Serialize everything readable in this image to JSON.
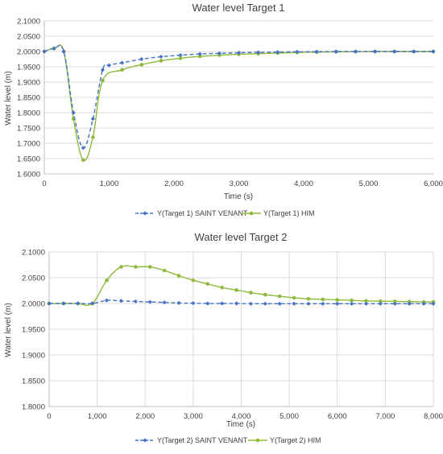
{
  "chart_data": [
    {
      "type": "line",
      "title": "Water level Target 1",
      "xlabel": "Time (s)",
      "ylabel": "Water level (m)",
      "xlim": [
        0,
        6000
      ],
      "ylim": [
        1.6,
        2.1
      ],
      "x_ticks": [
        "0",
        "1,000",
        "2,000",
        "3,000",
        "4,000",
        "5,000",
        "6,000"
      ],
      "y_ticks": [
        "1.6000",
        "1.6500",
        "1.7000",
        "1.7500",
        "1.8000",
        "1.8500",
        "1.9000",
        "1.9500",
        "2.0000",
        "2.0500",
        "2.1000"
      ],
      "grid": "horizontal",
      "legend": "bottom",
      "series": [
        {
          "name": "Y(Target 1) SAINT VENANT",
          "color": "#4472c4",
          "style": "dashed",
          "marker": "diamond",
          "points": [
            [
              0,
              2.0
            ],
            [
              150,
              2.01
            ],
            [
              300,
              2.0
            ],
            [
              450,
              1.8
            ],
            [
              600,
              1.685
            ],
            [
              750,
              1.78
            ],
            [
              900,
              1.94
            ],
            [
              1000,
              1.955
            ],
            [
              1200,
              1.963
            ],
            [
              1500,
              1.975
            ],
            [
              1800,
              1.983
            ],
            [
              2100,
              1.988
            ],
            [
              2400,
              1.992
            ],
            [
              2700,
              1.994
            ],
            [
              3000,
              1.996
            ],
            [
              3300,
              1.997
            ],
            [
              3600,
              1.998
            ],
            [
              3900,
              1.999
            ],
            [
              4200,
              1.9995
            ],
            [
              4500,
              2.0
            ],
            [
              4800,
              2.0
            ],
            [
              5100,
              2.0
            ],
            [
              5400,
              2.0
            ],
            [
              5700,
              2.0
            ],
            [
              6000,
              2.0
            ]
          ]
        },
        {
          "name": "Y(Target 1) HIM",
          "color": "#8fba3c",
          "style": "solid",
          "marker": "circle",
          "points": [
            [
              0,
              2.0
            ],
            [
              150,
              2.01
            ],
            [
              300,
              2.0
            ],
            [
              450,
              1.78
            ],
            [
              600,
              1.645
            ],
            [
              750,
              1.72
            ],
            [
              900,
              1.905
            ],
            [
              1200,
              1.94
            ],
            [
              1500,
              1.957
            ],
            [
              1800,
              1.97
            ],
            [
              2100,
              1.978
            ],
            [
              2400,
              1.984
            ],
            [
              2700,
              1.988
            ],
            [
              3000,
              1.991
            ],
            [
              3300,
              1.993
            ],
            [
              3600,
              1.995
            ],
            [
              3900,
              1.997
            ],
            [
              4200,
              1.998
            ],
            [
              4500,
              1.999
            ],
            [
              4800,
              1.9995
            ],
            [
              5100,
              2.0
            ],
            [
              5400,
              2.0
            ],
            [
              5700,
              2.0
            ],
            [
              6000,
              2.0
            ]
          ]
        }
      ]
    },
    {
      "type": "line",
      "title": "Water level Target 2",
      "xlabel": "Time (s)",
      "ylabel": "Water level (m)",
      "xlim": [
        0,
        8000
      ],
      "ylim": [
        1.8,
        2.1
      ],
      "x_ticks": [
        "0",
        "1,000",
        "2,000",
        "3,000",
        "4,000",
        "5,000",
        "6,000",
        "7,000",
        "8,000"
      ],
      "y_ticks": [
        "1.8000",
        "1.8500",
        "1.9000",
        "1.9500",
        "2.0000",
        "2.0500",
        "2.1000"
      ],
      "grid": "both",
      "legend": "bottom",
      "series": [
        {
          "name": "Y(Target 2) SAINT VENANT",
          "color": "#4472c4",
          "style": "dashed",
          "marker": "diamond",
          "points": [
            [
              0,
              2.0
            ],
            [
              300,
              2.0
            ],
            [
              600,
              2.0
            ],
            [
              900,
              2.0
            ],
            [
              1200,
              2.006
            ],
            [
              1500,
              2.005
            ],
            [
              1800,
              2.004
            ],
            [
              2100,
              2.003
            ],
            [
              2400,
              2.002
            ],
            [
              2700,
              2.001
            ],
            [
              3000,
              2.0005
            ],
            [
              3300,
              2.0
            ],
            [
              3600,
              2.0
            ],
            [
              3900,
              2.0
            ],
            [
              4200,
              1.9995
            ],
            [
              4500,
              1.9995
            ],
            [
              4800,
              1.9995
            ],
            [
              5100,
              1.9995
            ],
            [
              5400,
              1.9995
            ],
            [
              5700,
              1.9995
            ],
            [
              6000,
              1.9995
            ],
            [
              6300,
              1.9995
            ],
            [
              6600,
              1.9995
            ],
            [
              6900,
              1.9995
            ],
            [
              7200,
              1.9995
            ],
            [
              7500,
              1.9995
            ],
            [
              7800,
              1.9995
            ],
            [
              8000,
              1.9995
            ]
          ]
        },
        {
          "name": "Y(Target 2) HIM",
          "color": "#8fba3c",
          "style": "solid",
          "marker": "circle",
          "points": [
            [
              0,
              2.0
            ],
            [
              300,
              2.0
            ],
            [
              600,
              2.0
            ],
            [
              900,
              2.0
            ],
            [
              1200,
              2.045
            ],
            [
              1500,
              2.071
            ],
            [
              1800,
              2.071
            ],
            [
              2100,
              2.071
            ],
            [
              2400,
              2.064
            ],
            [
              2700,
              2.054
            ],
            [
              3000,
              2.045
            ],
            [
              3300,
              2.038
            ],
            [
              3600,
              2.031
            ],
            [
              3900,
              2.026
            ],
            [
              4200,
              2.021
            ],
            [
              4500,
              2.017
            ],
            [
              4800,
              2.014
            ],
            [
              5100,
              2.011
            ],
            [
              5400,
              2.009
            ],
            [
              5700,
              2.008
            ],
            [
              6000,
              2.007
            ],
            [
              6300,
              2.006
            ],
            [
              6600,
              2.005
            ],
            [
              6900,
              2.0045
            ],
            [
              7200,
              2.004
            ],
            [
              7500,
              2.0035
            ],
            [
              7800,
              2.003
            ],
            [
              8000,
              2.003
            ]
          ]
        }
      ]
    }
  ]
}
